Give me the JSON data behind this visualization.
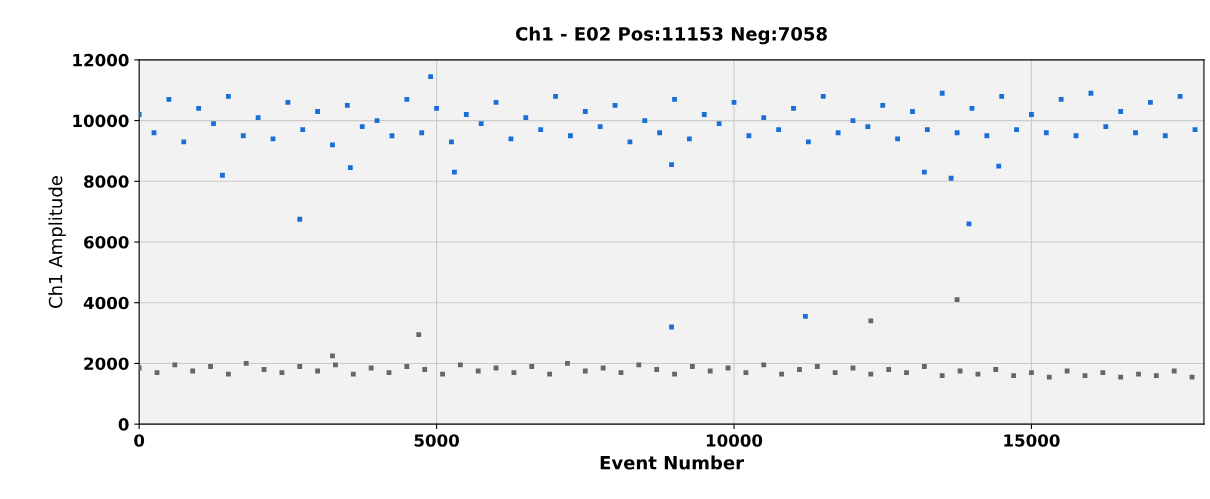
{
  "chart_data": {
    "type": "scatter",
    "title": "Ch1 - E02 Pos:11153 Neg:7058",
    "xlabel": "Event Number",
    "ylabel": "Ch1 Amplitude",
    "xlim": [
      0,
      17900
    ],
    "xticks": [
      0,
      5000,
      10000,
      15000
    ],
    "ylim": [
      0,
      12000
    ],
    "yticks": [
      0,
      2000,
      4000,
      6000,
      8000,
      10000,
      12000
    ],
    "grid": true,
    "marker": "square",
    "series": [
      {
        "color": "#1a6fd6",
        "x": [
          0,
          250,
          500,
          750,
          1000,
          1250,
          1500,
          1750,
          2000,
          2250,
          2500,
          2750,
          3000,
          3250,
          3500,
          3750,
          4000,
          4250,
          4500,
          4750,
          5000,
          5250,
          5500,
          5750,
          6000,
          6250,
          6500,
          6750,
          7000,
          7250,
          7500,
          7750,
          8000,
          8250,
          8500,
          8750,
          9000,
          9250,
          9500,
          9750,
          10000,
          10250,
          10500,
          10750,
          11000,
          11250,
          11500,
          11750,
          12000,
          12250,
          12500,
          12750,
          13000,
          13250,
          13500,
          13750,
          14000,
          14250,
          14500,
          14750,
          15000,
          15250,
          15500,
          15750,
          16000,
          16250,
          16500,
          16750,
          17000,
          17250,
          17500,
          17750,
          1400,
          2700,
          3550,
          4900,
          5300,
          8950,
          8950,
          11200,
          13200,
          13650,
          13950,
          14450
        ],
        "values": [
          10200,
          9600,
          10700,
          9300,
          10400,
          9900,
          10800,
          9500,
          10100,
          9400,
          10600,
          9700,
          10300,
          9200,
          10500,
          9800,
          10000,
          9500,
          10700,
          9600,
          10400,
          9300,
          10200,
          9900,
          10600,
          9400,
          10100,
          9700,
          10800,
          9500,
          10300,
          9800,
          10500,
          9300,
          10000,
          9600,
          10700,
          9400,
          10200,
          9900,
          10600,
          9500,
          10100,
          9700,
          10400,
          9300,
          10800,
          9600,
          10000,
          9800,
          10500,
          9400,
          10300,
          9700,
          10900,
          9600,
          10400,
          9500,
          10800,
          9700,
          10200,
          9600,
          10700,
          9500,
          10900,
          9800,
          10300,
          9600,
          10600,
          9500,
          10800,
          9700,
          8200,
          6750,
          8450,
          11450,
          8300,
          8550,
          3200,
          3550,
          8300,
          8100,
          6600,
          8500
        ]
      },
      {
        "color": "#666666",
        "x": [
          0,
          300,
          600,
          900,
          1200,
          1500,
          1800,
          2100,
          2400,
          2700,
          3000,
          3300,
          3600,
          3900,
          4200,
          4500,
          4800,
          5100,
          5400,
          5700,
          6000,
          6300,
          6600,
          6900,
          7200,
          7500,
          7800,
          8100,
          8400,
          8700,
          9000,
          9300,
          9600,
          9900,
          10200,
          10500,
          10800,
          11100,
          11400,
          11700,
          12000,
          12300,
          12600,
          12900,
          13200,
          13500,
          13800,
          14100,
          14400,
          14700,
          15000,
          15300,
          15600,
          15900,
          16200,
          16500,
          16800,
          17100,
          17400,
          17700,
          3250,
          4700,
          12300,
          13750
        ],
        "values": [
          1850,
          1700,
          1950,
          1750,
          1900,
          1650,
          2000,
          1800,
          1700,
          1900,
          1750,
          1950,
          1650,
          1850,
          1700,
          1900,
          1800,
          1650,
          1950,
          1750,
          1850,
          1700,
          1900,
          1650,
          2000,
          1750,
          1850,
          1700,
          1950,
          1800,
          1650,
          1900,
          1750,
          1850,
          1700,
          1950,
          1650,
          1800,
          1900,
          1700,
          1850,
          1650,
          1800,
          1700,
          1900,
          1600,
          1750,
          1650,
          1800,
          1600,
          1700,
          1550,
          1750,
          1600,
          1700,
          1550,
          1650,
          1600,
          1750,
          1550,
          2250,
          2950,
          3400,
          4100
        ]
      }
    ]
  }
}
